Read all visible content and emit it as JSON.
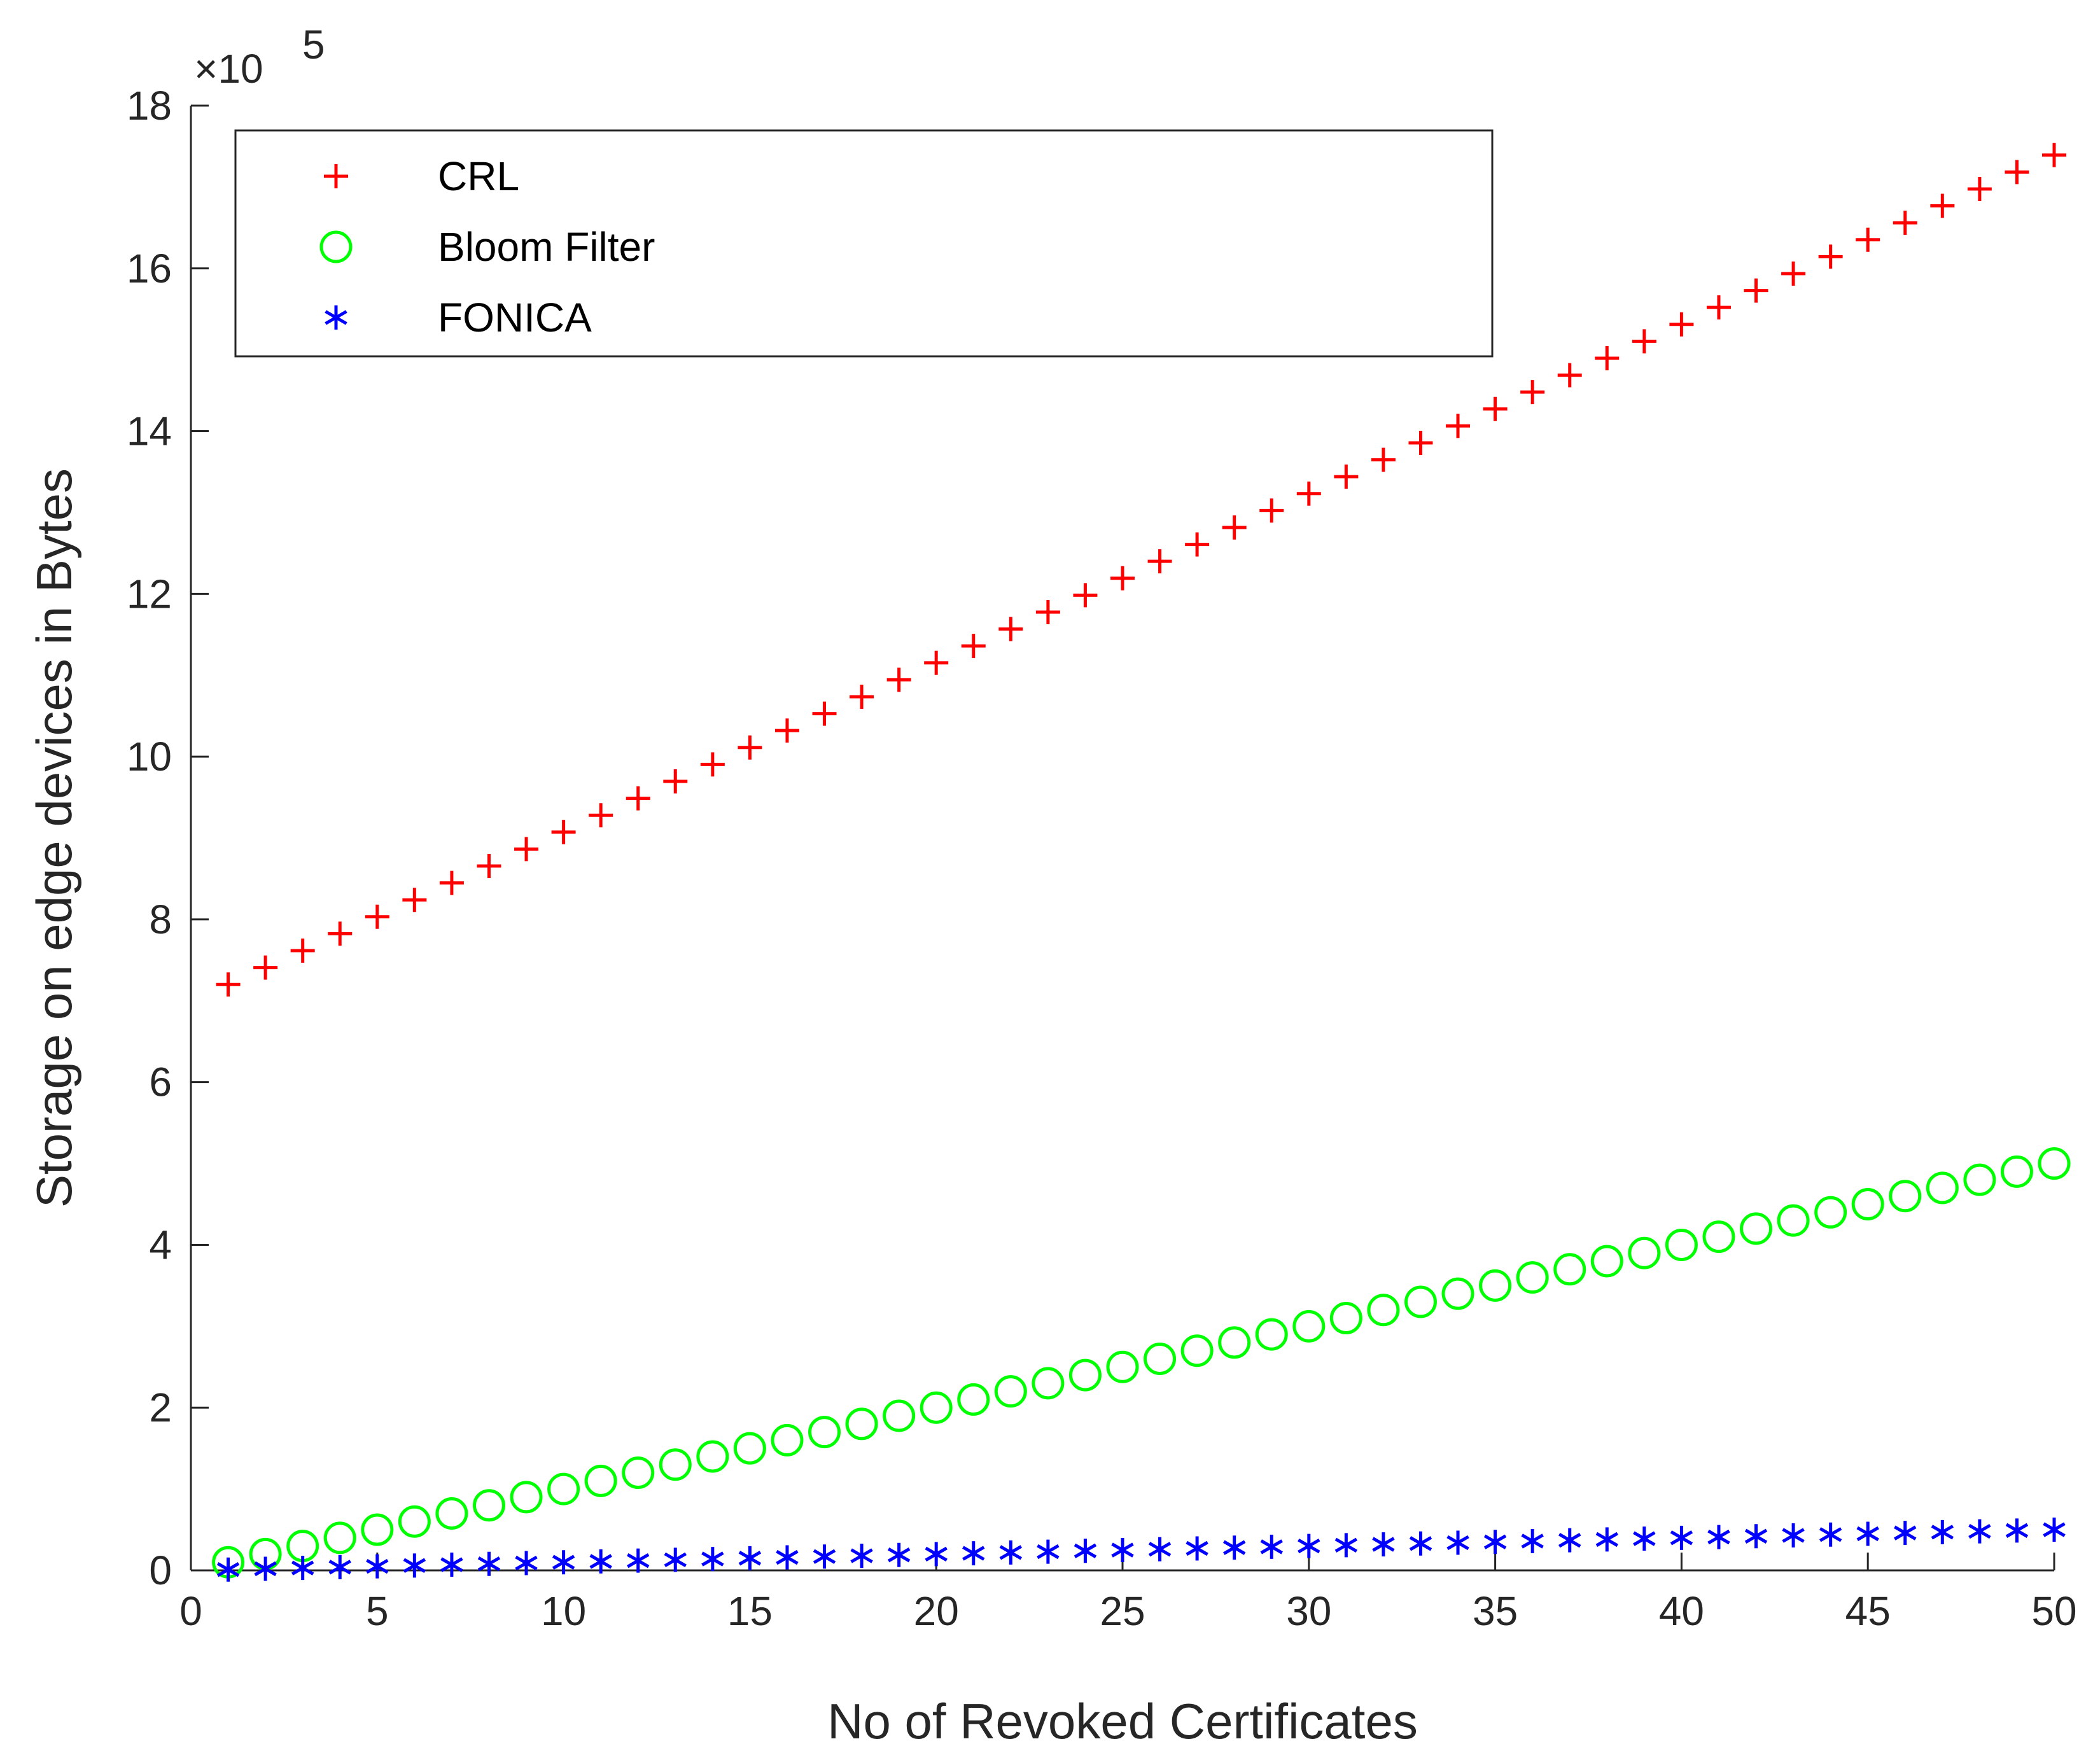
{
  "chart_data": {
    "type": "scatter",
    "title": "",
    "xlabel": "No of Revoked Certificates",
    "ylabel": "Storage on edge devices in Bytes",
    "xlim": [
      0,
      50
    ],
    "ylim": [
      0,
      1800000
    ],
    "x_ticks": [
      0,
      5,
      10,
      15,
      20,
      25,
      30,
      35,
      40,
      45,
      50
    ],
    "y_ticks": [
      0,
      200000,
      400000,
      600000,
      800000,
      1000000,
      1200000,
      1400000,
      1600000,
      1800000
    ],
    "y_tick_labels": [
      "0",
      "2",
      "4",
      "6",
      "8",
      "10",
      "12",
      "14",
      "16",
      "18"
    ],
    "y_multiplier": {
      "base": "×10",
      "exponent": "5"
    },
    "legend_position": "top-left",
    "grid": false,
    "x": [
      1,
      2,
      3,
      4,
      5,
      6,
      7,
      8,
      9,
      10,
      11,
      12,
      13,
      14,
      15,
      16,
      17,
      18,
      19,
      20,
      21,
      22,
      23,
      24,
      25,
      26,
      27,
      28,
      29,
      30,
      31,
      32,
      33,
      34,
      35,
      36,
      37,
      38,
      39,
      40,
      41,
      42,
      43,
      44,
      45,
      46,
      47,
      48,
      49,
      50
    ],
    "series": [
      {
        "name": "CRL",
        "marker": "plus",
        "color": "#ff0000",
        "values": [
          720000,
          740800,
          761600,
          782400,
          803200,
          824000,
          844800,
          865600,
          886400,
          907200,
          928000,
          948800,
          969600,
          990400,
          1011200,
          1032000,
          1052800,
          1073600,
          1094400,
          1115200,
          1136000,
          1156800,
          1177600,
          1198400,
          1219200,
          1240000,
          1260800,
          1281600,
          1302400,
          1323200,
          1344000,
          1364800,
          1385600,
          1406400,
          1427200,
          1448000,
          1468800,
          1489600,
          1510400,
          1531200,
          1552000,
          1572800,
          1593600,
          1614400,
          1635200,
          1656000,
          1676800,
          1697600,
          1718400,
          1739200
        ]
      },
      {
        "name": "Bloom Filter",
        "marker": "circle",
        "color": "#00ff00",
        "values": [
          10000,
          20000,
          30000,
          40000,
          50000,
          60000,
          70000,
          80000,
          90000,
          100000,
          110000,
          120000,
          130000,
          140000,
          150000,
          160000,
          170000,
          180000,
          190000,
          200000,
          210000,
          220000,
          230000,
          240000,
          250000,
          260000,
          270000,
          280000,
          290000,
          300000,
          310000,
          320000,
          330000,
          340000,
          350000,
          360000,
          370000,
          380000,
          390000,
          400000,
          410000,
          420000,
          430000,
          440000,
          450000,
          460000,
          470000,
          480000,
          490000,
          500000
        ]
      },
      {
        "name": "FONICA",
        "marker": "asterisk",
        "color": "#0000ff",
        "values": [
          1000,
          2000,
          3000,
          4000,
          5000,
          6000,
          7000,
          8000,
          9000,
          10000,
          11000,
          12000,
          13000,
          14000,
          15000,
          16000,
          17000,
          18000,
          19000,
          20000,
          21000,
          22000,
          23000,
          24000,
          25000,
          26000,
          27000,
          28000,
          29000,
          30000,
          31000,
          32000,
          33000,
          34000,
          35000,
          36000,
          37000,
          38000,
          39000,
          40000,
          41000,
          42000,
          43000,
          44000,
          45000,
          46000,
          47000,
          48000,
          49000,
          50000
        ]
      }
    ]
  }
}
